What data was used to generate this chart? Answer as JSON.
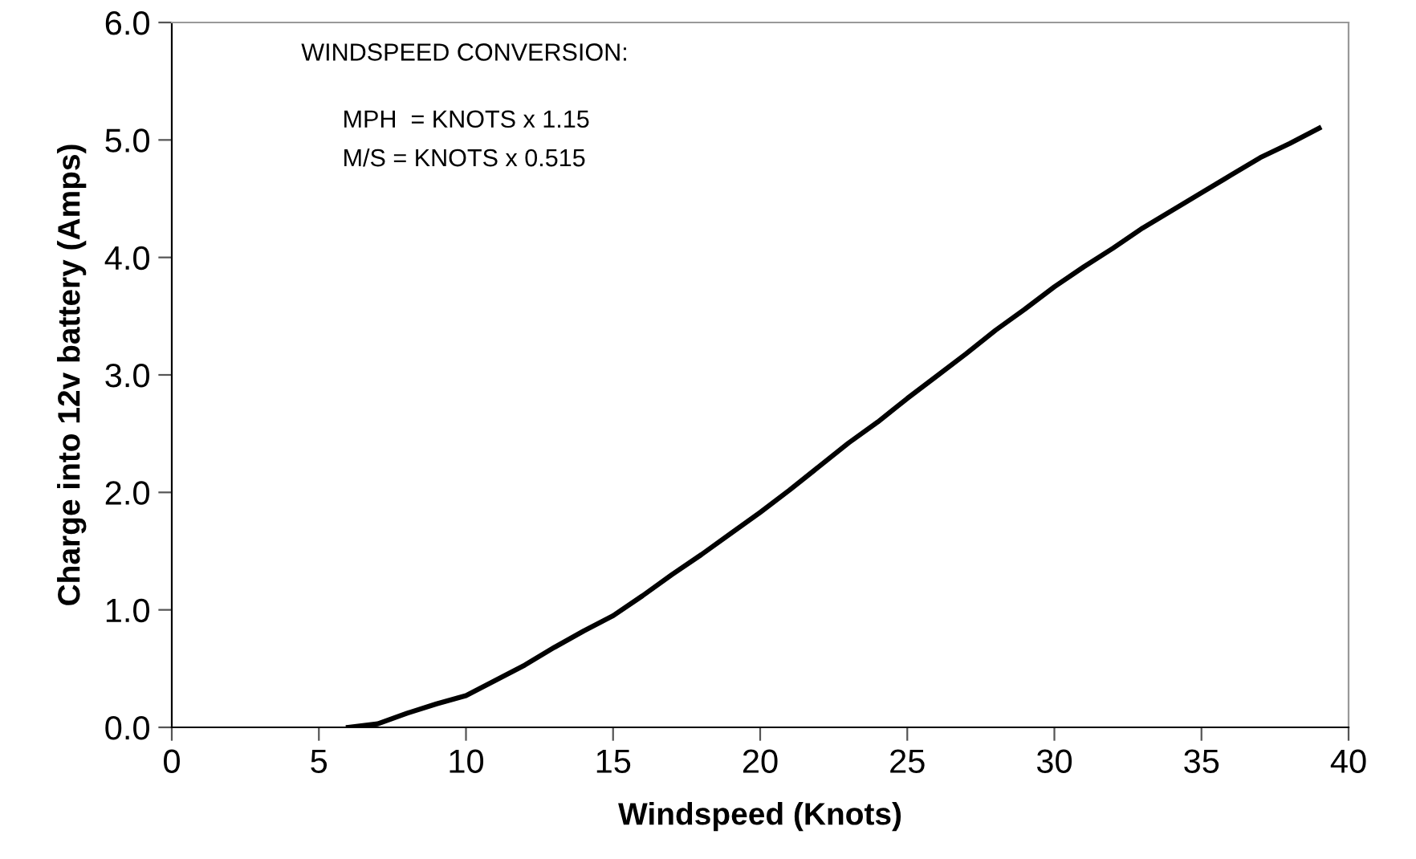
{
  "chart_data": {
    "type": "line",
    "xlabel": "Windspeed (Knots)",
    "ylabel": "Charge into 12v battery (Amps)",
    "annotations": [
      "WINDSPEED CONVERSION:",
      "MPH  = KNOTS x 1.15",
      "M/S = KNOTS x 0.515"
    ],
    "x": [
      6,
      7,
      8,
      9,
      10,
      11,
      12,
      13,
      14,
      15,
      16,
      17,
      18,
      19,
      20,
      21,
      22,
      23,
      24,
      25,
      26,
      27,
      28,
      29,
      30,
      31,
      32,
      33,
      34,
      35,
      36,
      37,
      38,
      39
    ],
    "series": [
      {
        "color": "#000000",
        "values": [
          0,
          0.03,
          0.12,
          0.2,
          0.27,
          0.4,
          0.53,
          0.68,
          0.82,
          0.95,
          1.12,
          1.3,
          1.47,
          1.65,
          1.83,
          2.02,
          2.22,
          2.42,
          2.6,
          2.8,
          2.99,
          3.18,
          3.38,
          3.56,
          3.75,
          3.92,
          4.08,
          4.25,
          4.4,
          4.55,
          4.7,
          4.85,
          4.97,
          5.1
        ]
      }
    ],
    "xlim": [
      0,
      40
    ],
    "ylim": [
      0,
      6
    ],
    "xticks": [
      0,
      5,
      10,
      15,
      20,
      25,
      30,
      35,
      40
    ],
    "yticks": [
      {
        "value": 0,
        "label": "0.0"
      },
      {
        "value": 1,
        "label": "1.0"
      },
      {
        "value": 2,
        "label": "2.0"
      },
      {
        "value": 3,
        "label": "3.0"
      },
      {
        "value": 4,
        "label": "4.0"
      },
      {
        "value": 5,
        "label": "5.0"
      },
      {
        "value": 6,
        "label": "6.0"
      }
    ],
    "grid": false,
    "legend": false,
    "marker": "none",
    "line_style": "solid"
  }
}
